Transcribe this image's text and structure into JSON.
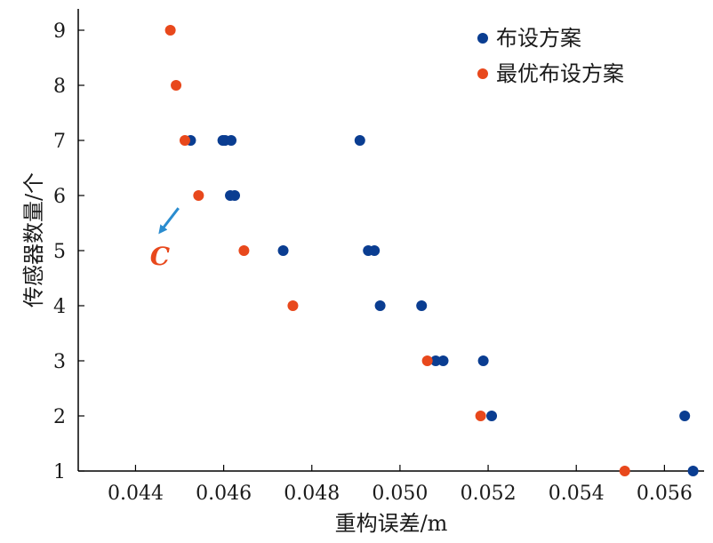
{
  "chart_data": {
    "type": "scatter",
    "title": "",
    "xlabel": "重构误差/m",
    "ylabel": "传感器数量/个",
    "xlim": [
      0.0427,
      0.0569
    ],
    "ylim": [
      1,
      9.4
    ],
    "x_ticks": [
      0.044,
      0.046,
      0.048,
      0.05,
      0.052,
      0.054,
      0.056
    ],
    "x_tick_labels": [
      "0.044",
      "0.046",
      "0.048",
      "0.050",
      "0.052",
      "0.054",
      "0.056"
    ],
    "y_ticks": [
      1,
      2,
      3,
      4,
      5,
      6,
      7,
      8,
      9
    ],
    "y_tick_labels": [
      "1",
      "2",
      "3",
      "4",
      "5",
      "6",
      "7",
      "8",
      "9"
    ],
    "grid": false,
    "legend_position": "top-right",
    "series": [
      {
        "name": "布设方案",
        "color": "#0a3d91",
        "points": [
          {
            "x": 0.04525,
            "y": 7
          },
          {
            "x": 0.04598,
            "y": 7
          },
          {
            "x": 0.04603,
            "y": 7
          },
          {
            "x": 0.04617,
            "y": 7
          },
          {
            "x": 0.04909,
            "y": 7
          },
          {
            "x": 0.04615,
            "y": 6
          },
          {
            "x": 0.04625,
            "y": 6
          },
          {
            "x": 0.04735,
            "y": 5
          },
          {
            "x": 0.04928,
            "y": 5
          },
          {
            "x": 0.04942,
            "y": 5
          },
          {
            "x": 0.04955,
            "y": 4
          },
          {
            "x": 0.05049,
            "y": 4
          },
          {
            "x": 0.05081,
            "y": 3
          },
          {
            "x": 0.05098,
            "y": 3
          },
          {
            "x": 0.05189,
            "y": 3
          },
          {
            "x": 0.05208,
            "y": 2
          },
          {
            "x": 0.05646,
            "y": 2
          },
          {
            "x": 0.05665,
            "y": 1
          }
        ]
      },
      {
        "name": "最优布设方案",
        "color": "#e8481c",
        "points": [
          {
            "x": 0.04479,
            "y": 9
          },
          {
            "x": 0.04492,
            "y": 8
          },
          {
            "x": 0.04512,
            "y": 7
          },
          {
            "x": 0.04543,
            "y": 6
          },
          {
            "x": 0.04646,
            "y": 5
          },
          {
            "x": 0.04757,
            "y": 4
          },
          {
            "x": 0.05062,
            "y": 3
          },
          {
            "x": 0.05183,
            "y": 2
          },
          {
            "x": 0.0551,
            "y": 1
          }
        ]
      }
    ],
    "annotations": [
      {
        "text": "C",
        "color": "#e8481c",
        "arrow_color": "#2a8ccf",
        "target_x": 0.04453,
        "target_y": 5.32
      }
    ]
  }
}
